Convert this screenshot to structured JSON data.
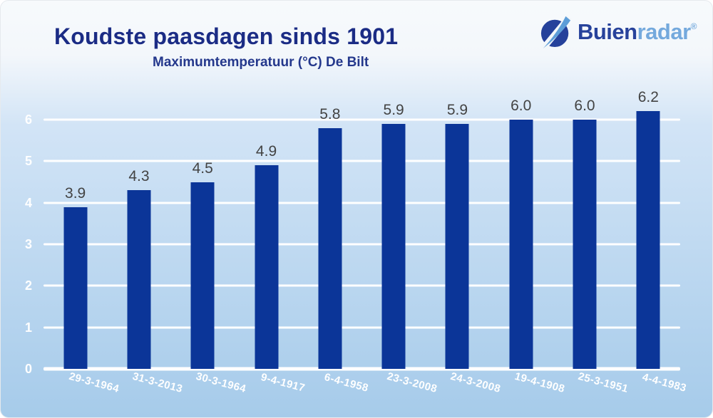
{
  "header": {
    "title": "Koudste paasdagen sinds 1901",
    "subtitle": "Maximumtemperatuur (°C) De Bilt"
  },
  "logo": {
    "text_dark": "Buien",
    "text_light": "radar",
    "registered": "®",
    "icon": "buienradar-radar-beam-icon",
    "color_dark": "#27429b",
    "color_light": "#74a9dd"
  },
  "chart_data": {
    "type": "bar",
    "title": "Koudste paasdagen sinds 1901",
    "subtitle": "Maximumtemperatuur (°C) De Bilt",
    "xlabel": "",
    "ylabel": "",
    "categories": [
      "29-3-1964",
      "31-3-2013",
      "30-3-1964",
      "9-4-1917",
      "6-4-1958",
      "23-3-2008",
      "24-3-2008",
      "19-4-1908",
      "25-3-1951",
      "4-4-1983"
    ],
    "values": [
      3.9,
      4.3,
      4.5,
      4.9,
      5.8,
      5.9,
      5.9,
      6.0,
      6.0,
      6.2
    ],
    "value_labels": [
      "3.9",
      "4.3",
      "4.5",
      "4.9",
      "5.8",
      "5.9",
      "5.9",
      "6.0",
      "6.0",
      "6.2"
    ],
    "ylim": [
      0,
      6
    ],
    "yticks": [
      0,
      1,
      2,
      3,
      4,
      5,
      6
    ],
    "grid": true,
    "legend": false,
    "bar_color": "#0b3598",
    "gridline_color": "#ffffff",
    "ytick_label_color": "#ffffff",
    "xtick_label_color": "#ffffff",
    "value_label_color": "#434343",
    "background_gradient_top": "#f7fafc",
    "background_gradient_bottom": "#a6cbea"
  }
}
